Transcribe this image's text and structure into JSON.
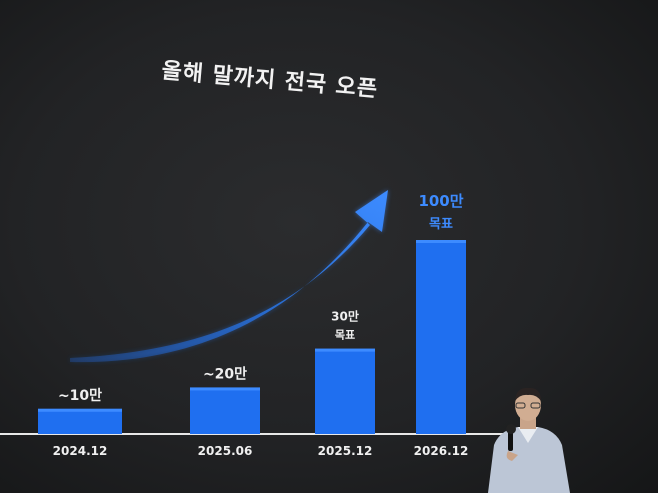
{
  "slide": {
    "title": "올해 말까지 전국 오픈"
  },
  "colors": {
    "bar": "#1f6ff0",
    "bar_highlight": "#3d8bff",
    "accent_text": "#3d8bff",
    "text": "#f0f0f0",
    "baseline": "#e8e8e8"
  },
  "chart_data": {
    "type": "bar",
    "title": "올해 말까지 전국 오픈",
    "categories": [
      "2024.12",
      "2025.06",
      "2025.12",
      "2026.12"
    ],
    "values": [
      10,
      20,
      30,
      100
    ],
    "value_unit": "만",
    "data_labels": [
      {
        "value": "~10만",
        "note": ""
      },
      {
        "value": "~20만",
        "note": ""
      },
      {
        "value": "30만",
        "note": "목표"
      },
      {
        "value": "100만",
        "note": "목표"
      }
    ],
    "ylim": [
      0,
      100
    ],
    "grid": false,
    "legend": "none",
    "annotation": "upward-trend-arrow"
  }
}
